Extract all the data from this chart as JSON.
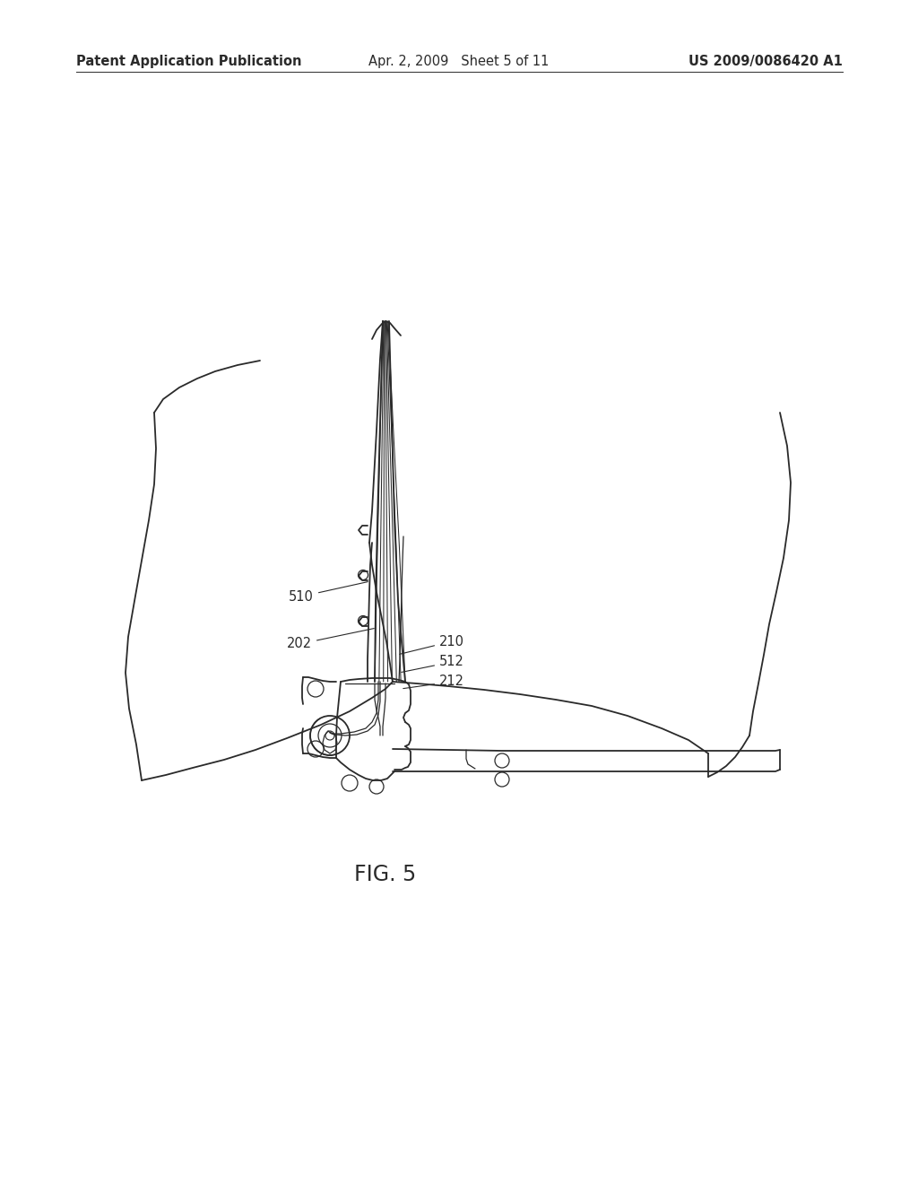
{
  "background_color": "#ffffff",
  "header_left": "Patent Application Publication",
  "header_center": "Apr. 2, 2009   Sheet 5 of 11",
  "header_right": "US 2009/0086420 A1",
  "header_fontsize": 10.5,
  "fig_label": "FIG. 5",
  "fig_label_fontsize": 17,
  "line_color": "#2a2a2a",
  "label_fontsize": 10.5
}
